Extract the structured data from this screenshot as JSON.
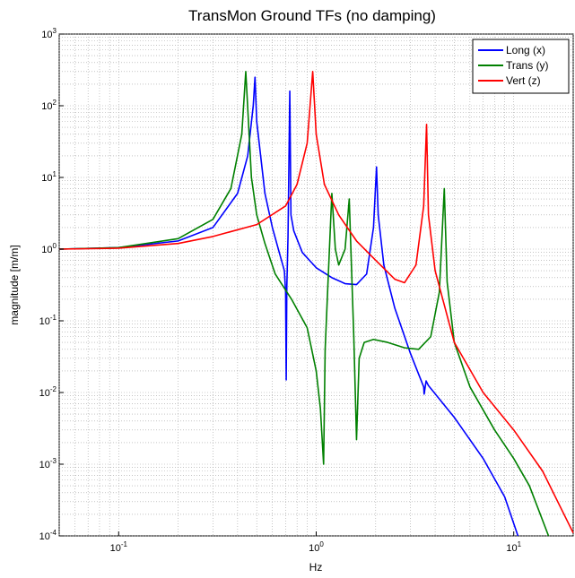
{
  "chart_data": {
    "type": "line",
    "title": "TransMon Ground TFs (no damping)",
    "xlabel": "Hz",
    "ylabel": "magnitude [m/m]",
    "xscale": "log",
    "yscale": "log",
    "xlim": [
      0.05,
      20
    ],
    "ylim": [
      0.0001,
      1000
    ],
    "grid": true,
    "legend_position": "top-right",
    "x_ticks": [
      {
        "value": 0.1,
        "base": "10",
        "exp": "-1"
      },
      {
        "value": 1,
        "base": "10",
        "exp": "0"
      },
      {
        "value": 10,
        "base": "10",
        "exp": "1"
      }
    ],
    "y_ticks": [
      {
        "value": 0.0001,
        "base": "10",
        "exp": "-4"
      },
      {
        "value": 0.001,
        "base": "10",
        "exp": "-3"
      },
      {
        "value": 0.01,
        "base": "10",
        "exp": "-2"
      },
      {
        "value": 0.1,
        "base": "10",
        "exp": "-1"
      },
      {
        "value": 1,
        "base": "10",
        "exp": "0"
      },
      {
        "value": 10,
        "base": "10",
        "exp": "1"
      },
      {
        "value": 100,
        "base": "10",
        "exp": "2"
      },
      {
        "value": 1000,
        "base": "10",
        "exp": "3"
      }
    ],
    "series": [
      {
        "name": "Long (x)",
        "color": "#0000ff",
        "points": [
          [
            0.05,
            1.0
          ],
          [
            0.1,
            1.05
          ],
          [
            0.2,
            1.3
          ],
          [
            0.3,
            2.0
          ],
          [
            0.4,
            6.0
          ],
          [
            0.45,
            20
          ],
          [
            0.48,
            100
          ],
          [
            0.49,
            250
          ],
          [
            0.5,
            60
          ],
          [
            0.55,
            6
          ],
          [
            0.6,
            2.0
          ],
          [
            0.65,
            0.9
          ],
          [
            0.69,
            0.5
          ],
          [
            0.7,
            0.25
          ],
          [
            0.705,
            0.015
          ],
          [
            0.71,
            0.3
          ],
          [
            0.72,
            1.5
          ],
          [
            0.735,
            160
          ],
          [
            0.745,
            3
          ],
          [
            0.77,
            1.8
          ],
          [
            0.85,
            0.9
          ],
          [
            1.0,
            0.55
          ],
          [
            1.2,
            0.4
          ],
          [
            1.4,
            0.33
          ],
          [
            1.6,
            0.32
          ],
          [
            1.8,
            0.45
          ],
          [
            1.95,
            2.0
          ],
          [
            2.02,
            14
          ],
          [
            2.06,
            3
          ],
          [
            2.2,
            0.6
          ],
          [
            2.5,
            0.15
          ],
          [
            3.0,
            0.035
          ],
          [
            3.3,
            0.018
          ],
          [
            3.5,
            0.012
          ],
          [
            3.52,
            0.0095
          ],
          [
            3.6,
            0.0145
          ],
          [
            3.7,
            0.0125
          ],
          [
            5,
            0.0045
          ],
          [
            7,
            0.0012
          ],
          [
            9,
            0.00035
          ],
          [
            10.5,
            0.0001
          ]
        ]
      },
      {
        "name": "Trans (y)",
        "color": "#008000",
        "points": [
          [
            0.05,
            1.0
          ],
          [
            0.1,
            1.05
          ],
          [
            0.2,
            1.4
          ],
          [
            0.3,
            2.6
          ],
          [
            0.37,
            7
          ],
          [
            0.42,
            40
          ],
          [
            0.44,
            300
          ],
          [
            0.47,
            10
          ],
          [
            0.5,
            3
          ],
          [
            0.55,
            1.2
          ],
          [
            0.62,
            0.45
          ],
          [
            0.75,
            0.2
          ],
          [
            0.9,
            0.08
          ],
          [
            1.0,
            0.02
          ],
          [
            1.05,
            0.006
          ],
          [
            1.09,
            0.001
          ],
          [
            1.11,
            0.04
          ],
          [
            1.15,
            0.4
          ],
          [
            1.2,
            6
          ],
          [
            1.25,
            1.0
          ],
          [
            1.3,
            0.6
          ],
          [
            1.4,
            1.0
          ],
          [
            1.47,
            5
          ],
          [
            1.5,
            0.9
          ],
          [
            1.55,
            0.06
          ],
          [
            1.6,
            0.0022
          ],
          [
            1.65,
            0.03
          ],
          [
            1.75,
            0.05
          ],
          [
            1.95,
            0.055
          ],
          [
            2.3,
            0.05
          ],
          [
            2.8,
            0.042
          ],
          [
            3.3,
            0.04
          ],
          [
            3.8,
            0.06
          ],
          [
            4.2,
            0.25
          ],
          [
            4.45,
            7
          ],
          [
            4.6,
            0.35
          ],
          [
            5.0,
            0.05
          ],
          [
            6,
            0.012
          ],
          [
            8,
            0.003
          ],
          [
            10,
            0.0012
          ],
          [
            12,
            0.0005
          ],
          [
            15,
            0.0001
          ]
        ]
      },
      {
        "name": "Vert (z)",
        "color": "#ff0000",
        "points": [
          [
            0.05,
            1.0
          ],
          [
            0.1,
            1.03
          ],
          [
            0.2,
            1.2
          ],
          [
            0.3,
            1.5
          ],
          [
            0.5,
            2.2
          ],
          [
            0.7,
            4
          ],
          [
            0.8,
            8
          ],
          [
            0.9,
            30
          ],
          [
            0.96,
            300
          ],
          [
            1.0,
            40
          ],
          [
            1.1,
            8
          ],
          [
            1.3,
            3
          ],
          [
            1.6,
            1.3
          ],
          [
            2.0,
            0.7
          ],
          [
            2.5,
            0.38
          ],
          [
            2.8,
            0.34
          ],
          [
            3.2,
            0.6
          ],
          [
            3.5,
            4
          ],
          [
            3.62,
            55
          ],
          [
            3.7,
            3
          ],
          [
            4.0,
            0.5
          ],
          [
            5,
            0.05
          ],
          [
            7,
            0.01
          ],
          [
            10,
            0.003
          ],
          [
            14,
            0.0008
          ],
          [
            20,
            0.00011
          ]
        ]
      }
    ]
  }
}
